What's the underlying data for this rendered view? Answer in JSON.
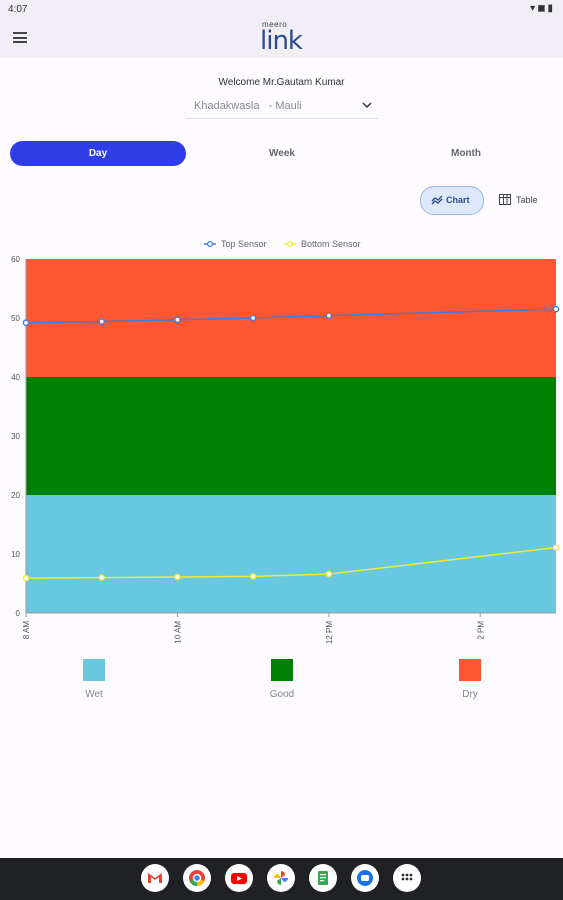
{
  "status_bar": {
    "time": "4:07"
  },
  "header": {
    "logo_small": "meero",
    "logo_big": "link"
  },
  "welcome": "Welcome Mr.Gautam Kumar",
  "location": {
    "selected": "Khadakwasla   - Mauli"
  },
  "tabs": [
    {
      "label": "Day",
      "active": true
    },
    {
      "label": "Week",
      "active": false
    },
    {
      "label": "Month",
      "active": false
    }
  ],
  "view_toggle": {
    "chart_label": "Chart",
    "table_label": "Table",
    "selected": "chart"
  },
  "chart_data": {
    "type": "line",
    "series": [
      {
        "name": "Top Sensor",
        "color": "#3b7de0",
        "x_hours": [
          8,
          9,
          10,
          11,
          12,
          15
        ],
        "values": [
          49.2,
          49.4,
          49.7,
          50.0,
          50.4,
          51.5
        ]
      },
      {
        "name": "Bottom Sensor",
        "color": "#f2e93a",
        "x_hours": [
          8,
          9,
          10,
          11,
          12,
          15
        ],
        "values": [
          5.9,
          6.0,
          6.1,
          6.2,
          6.6,
          11.1
        ]
      }
    ],
    "y_ticks": [
      0,
      10,
      20,
      30,
      40,
      50,
      60
    ],
    "ylim": [
      0,
      60
    ],
    "x_ticks": [
      "8 AM",
      "10 AM",
      "12 PM",
      "2 PM"
    ],
    "x_tick_hours": [
      8,
      10,
      12,
      14
    ],
    "xlim_hours": [
      8,
      15
    ],
    "legend_position": "top-center",
    "bands": [
      {
        "label": "Wet",
        "from": 0,
        "to": 20,
        "color": "#67c8e0"
      },
      {
        "label": "Good",
        "from": 20,
        "to": 40,
        "color": "#008000"
      },
      {
        "label": "Dry",
        "from": 40,
        "to": 60,
        "color": "#ff5733"
      }
    ]
  },
  "band_legend": [
    {
      "label": "Wet",
      "color": "#67c8e0"
    },
    {
      "label": "Good",
      "color": "#008000"
    },
    {
      "label": "Dry",
      "color": "#ff5733"
    }
  ],
  "dock_apps": [
    {
      "name": "gmail-icon"
    },
    {
      "name": "chrome-icon"
    },
    {
      "name": "youtube-icon"
    },
    {
      "name": "photos-icon"
    },
    {
      "name": "docs-icon"
    },
    {
      "name": "messages-icon"
    },
    {
      "name": "apps-grid-icon"
    }
  ]
}
